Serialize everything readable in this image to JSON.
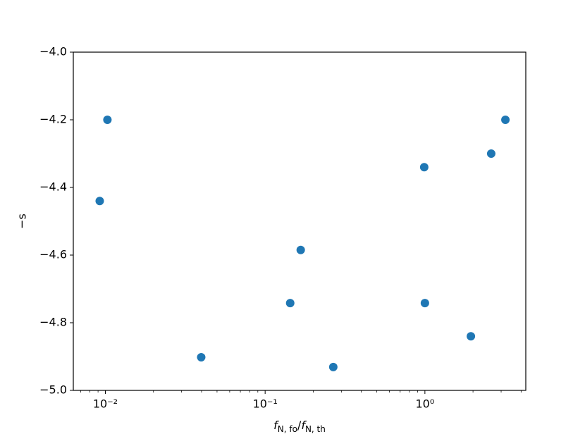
{
  "chart_data": {
    "type": "scatter",
    "x_label": {
      "parts": [
        "f",
        "N, fo",
        "/",
        "f",
        "N, th"
      ]
    },
    "y_label": "−s",
    "x": [
      0.0103,
      0.00922,
      0.0398,
      0.1435,
      0.167,
      0.267,
      0.99,
      1.0,
      1.94,
      2.6,
      3.19
    ],
    "series": [
      {
        "color": "#1f77b4",
        "values": [
          -4.2,
          -4.44,
          -4.902,
          -4.742,
          -4.585,
          -4.931,
          -4.34,
          -4.742,
          -4.84,
          -4.3,
          -4.2
        ]
      }
    ],
    "xscale": "log",
    "xlim": [
      0.0063,
      4.28
    ],
    "xticks": [
      {
        "value": 0.01,
        "label": "10⁻²"
      },
      {
        "value": 0.1,
        "label": "10⁻¹"
      },
      {
        "value": 1,
        "label": "10⁰"
      }
    ],
    "ylim": [
      -5,
      -4
    ],
    "yticks": [
      {
        "value": -5,
        "label": "−5.0"
      },
      {
        "value": -4.8,
        "label": "−4.8"
      },
      {
        "value": -4.6,
        "label": "−4.6"
      },
      {
        "value": -4.4,
        "label": "−4.4"
      },
      {
        "value": -4.2,
        "label": "−4.2"
      },
      {
        "value": -4,
        "label": "−4.0"
      }
    ],
    "grid": false
  }
}
